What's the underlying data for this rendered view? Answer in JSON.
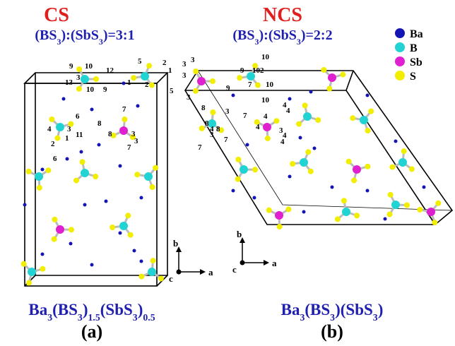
{
  "panels": [
    {
      "title": "CS",
      "ratio": {
        "parts": [
          "(BS",
          "3",
          "):(SbS",
          "3",
          ")=3:1"
        ]
      },
      "formula": {
        "parts": [
          "Ba",
          "3",
          "(BS",
          "3",
          ")",
          "1.5",
          "(SbS",
          "3",
          ")",
          "0.5"
        ]
      },
      "caption": "(a)",
      "axes": [
        "b",
        "a",
        "c"
      ],
      "atom_labels": [
        "9",
        "10",
        "12",
        "5",
        "2",
        "1",
        "13",
        "3",
        "1",
        "2",
        "5",
        "10",
        "9",
        "6",
        "8",
        "7",
        "4",
        "3",
        "11",
        "1",
        "3",
        "2",
        "8",
        "3",
        "7",
        "6"
      ]
    },
    {
      "title": "NCS",
      "ratio": {
        "parts": [
          "(BS",
          "3",
          "):(SbS",
          "3",
          ")=2:2"
        ]
      },
      "formula": {
        "parts": [
          "Ba",
          "3",
          "(BS",
          "3",
          ")(SbS",
          "3",
          ")"
        ]
      },
      "caption": "(b)",
      "axes": [
        "b",
        "a",
        "c"
      ],
      "atom_labels": [
        "3",
        "3",
        "3",
        "10",
        "9",
        "10",
        "2",
        "7",
        "10",
        "9",
        "10",
        "3",
        "8",
        "4",
        "3",
        "7",
        "4",
        "4",
        "4",
        "4",
        "3",
        "4",
        "4",
        "8",
        "8",
        "3",
        "7",
        "7"
      ]
    }
  ],
  "legend": [
    {
      "label": "Ba",
      "color": "#1414b4"
    },
    {
      "label": "B",
      "color": "#22d3d3"
    },
    {
      "label": "Sb",
      "color": "#e020d0"
    },
    {
      "label": "S",
      "color": "#f2ee00"
    }
  ]
}
